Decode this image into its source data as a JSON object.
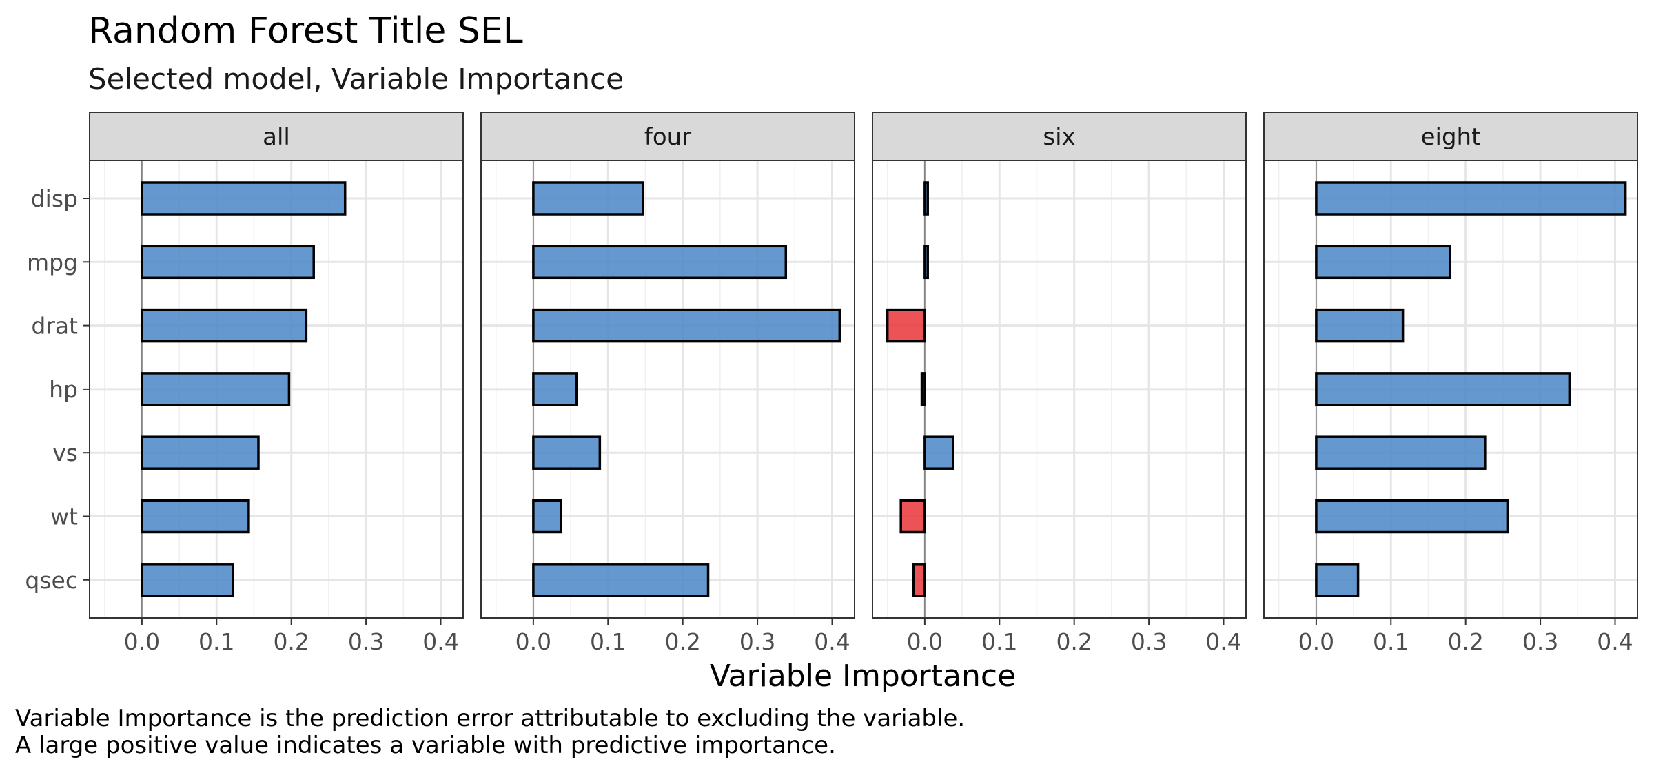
{
  "chart_data": {
    "type": "bar",
    "orientation": "horizontal",
    "title": "Random Forest Title SEL",
    "subtitle": "Selected model, Variable Importance",
    "xlabel": "Variable Importance",
    "caption": [
      "Variable Importance is the prediction error attributable to excluding the variable.",
      "A large positive value indicates a variable with predictive importance."
    ],
    "xlim": [
      -0.07,
      0.43
    ],
    "xticks": [
      0.0,
      0.1,
      0.2,
      0.3,
      0.4
    ],
    "xtick_labels": [
      "0.0",
      "0.1",
      "0.2",
      "0.3",
      "0.4"
    ],
    "categories": [
      "disp",
      "mpg",
      "drat",
      "hp",
      "vs",
      "wt",
      "qsec"
    ],
    "grid": true,
    "colors": {
      "positive": "#4a86c5",
      "negative": "#e8353a"
    },
    "panels": [
      {
        "name": "all",
        "values": [
          0.272,
          0.23,
          0.22,
          0.197,
          0.156,
          0.143,
          0.122
        ]
      },
      {
        "name": "four",
        "values": [
          0.147,
          0.338,
          0.41,
          0.058,
          0.089,
          0.037,
          0.234
        ]
      },
      {
        "name": "six",
        "values": [
          0.004,
          0.004,
          -0.05,
          -0.004,
          0.038,
          -0.032,
          -0.015
        ]
      },
      {
        "name": "eight",
        "values": [
          0.414,
          0.179,
          0.116,
          0.339,
          0.226,
          0.256,
          0.056
        ]
      }
    ]
  }
}
